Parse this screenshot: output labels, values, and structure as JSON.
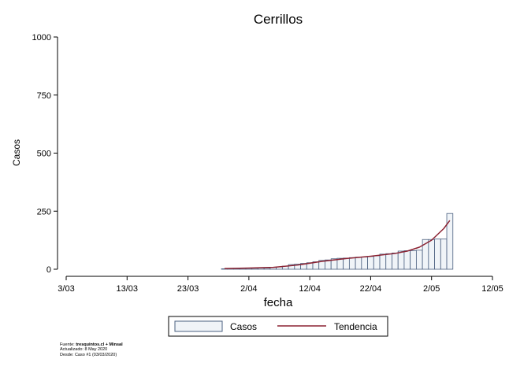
{
  "chart_data": {
    "type": "bar",
    "title": "Cerrillos",
    "xlabel": "fecha",
    "ylabel": "Casos",
    "ylim": [
      0,
      1000
    ],
    "yticks": [
      0,
      250,
      500,
      750,
      1000
    ],
    "xlim": [
      "2020-03-03",
      "2020-05-12"
    ],
    "xticks": [
      {
        "date": "2020-03-03",
        "label": "3/03"
      },
      {
        "date": "2020-03-13",
        "label": "13/03"
      },
      {
        "date": "2020-03-23",
        "label": "23/03"
      },
      {
        "date": "2020-04-02",
        "label": "2/04"
      },
      {
        "date": "2020-04-12",
        "label": "12/04"
      },
      {
        "date": "2020-04-22",
        "label": "22/04"
      },
      {
        "date": "2020-05-02",
        "label": "2/05"
      },
      {
        "date": "2020-05-12",
        "label": "12/05"
      }
    ],
    "grid": false,
    "legend_position": "bottom",
    "series": [
      {
        "name": "Casos",
        "kind": "bar",
        "color": "#f0f4f8",
        "edge_color": "#4a5f7f",
        "points": [
          {
            "date": "2020-03-29",
            "value": 2
          },
          {
            "date": "2020-03-30",
            "value": 3
          },
          {
            "date": "2020-03-31",
            "value": 3
          },
          {
            "date": "2020-04-01",
            "value": 4
          },
          {
            "date": "2020-04-02",
            "value": 4
          },
          {
            "date": "2020-04-03",
            "value": 4
          },
          {
            "date": "2020-04-04",
            "value": 5
          },
          {
            "date": "2020-04-05",
            "value": 5
          },
          {
            "date": "2020-04-06",
            "value": 8
          },
          {
            "date": "2020-04-07",
            "value": 10
          },
          {
            "date": "2020-04-08",
            "value": 13
          },
          {
            "date": "2020-04-09",
            "value": 20
          },
          {
            "date": "2020-04-10",
            "value": 22
          },
          {
            "date": "2020-04-11",
            "value": 25
          },
          {
            "date": "2020-04-12",
            "value": 28
          },
          {
            "date": "2020-04-13",
            "value": 32
          },
          {
            "date": "2020-04-14",
            "value": 38
          },
          {
            "date": "2020-04-15",
            "value": 40
          },
          {
            "date": "2020-04-16",
            "value": 45
          },
          {
            "date": "2020-04-17",
            "value": 47
          },
          {
            "date": "2020-04-18",
            "value": 48
          },
          {
            "date": "2020-04-19",
            "value": 50
          },
          {
            "date": "2020-04-20",
            "value": 52
          },
          {
            "date": "2020-04-21",
            "value": 53
          },
          {
            "date": "2020-04-22",
            "value": 55
          },
          {
            "date": "2020-04-23",
            "value": 58
          },
          {
            "date": "2020-04-24",
            "value": 65
          },
          {
            "date": "2020-04-25",
            "value": 67
          },
          {
            "date": "2020-04-26",
            "value": 70
          },
          {
            "date": "2020-04-27",
            "value": 78
          },
          {
            "date": "2020-04-28",
            "value": 80
          },
          {
            "date": "2020-04-29",
            "value": 80
          },
          {
            "date": "2020-04-30",
            "value": 82
          },
          {
            "date": "2020-05-01",
            "value": 128
          },
          {
            "date": "2020-05-02",
            "value": 128
          },
          {
            "date": "2020-05-03",
            "value": 130
          },
          {
            "date": "2020-05-04",
            "value": 130
          },
          {
            "date": "2020-05-05",
            "value": 240
          }
        ]
      },
      {
        "name": "Tendencia",
        "kind": "line",
        "color": "#8b2232",
        "points": [
          {
            "date": "2020-03-29",
            "value": 3
          },
          {
            "date": "2020-04-02",
            "value": 5
          },
          {
            "date": "2020-04-06",
            "value": 8
          },
          {
            "date": "2020-04-10",
            "value": 18
          },
          {
            "date": "2020-04-14",
            "value": 34
          },
          {
            "date": "2020-04-18",
            "value": 46
          },
          {
            "date": "2020-04-22",
            "value": 56
          },
          {
            "date": "2020-04-26",
            "value": 68
          },
          {
            "date": "2020-04-28",
            "value": 78
          },
          {
            "date": "2020-04-30",
            "value": 95
          },
          {
            "date": "2020-05-02",
            "value": 125
          },
          {
            "date": "2020-05-04",
            "value": 175
          },
          {
            "date": "2020-05-05",
            "value": 210
          }
        ]
      }
    ]
  },
  "footnote": {
    "source_prefix": "Fuente: ",
    "source_bold": "tresquintos.cl + Minsal",
    "updated": "Actualizado: 8 May 2020",
    "since": "Desde: Caso #1  (03/03/2020)"
  }
}
